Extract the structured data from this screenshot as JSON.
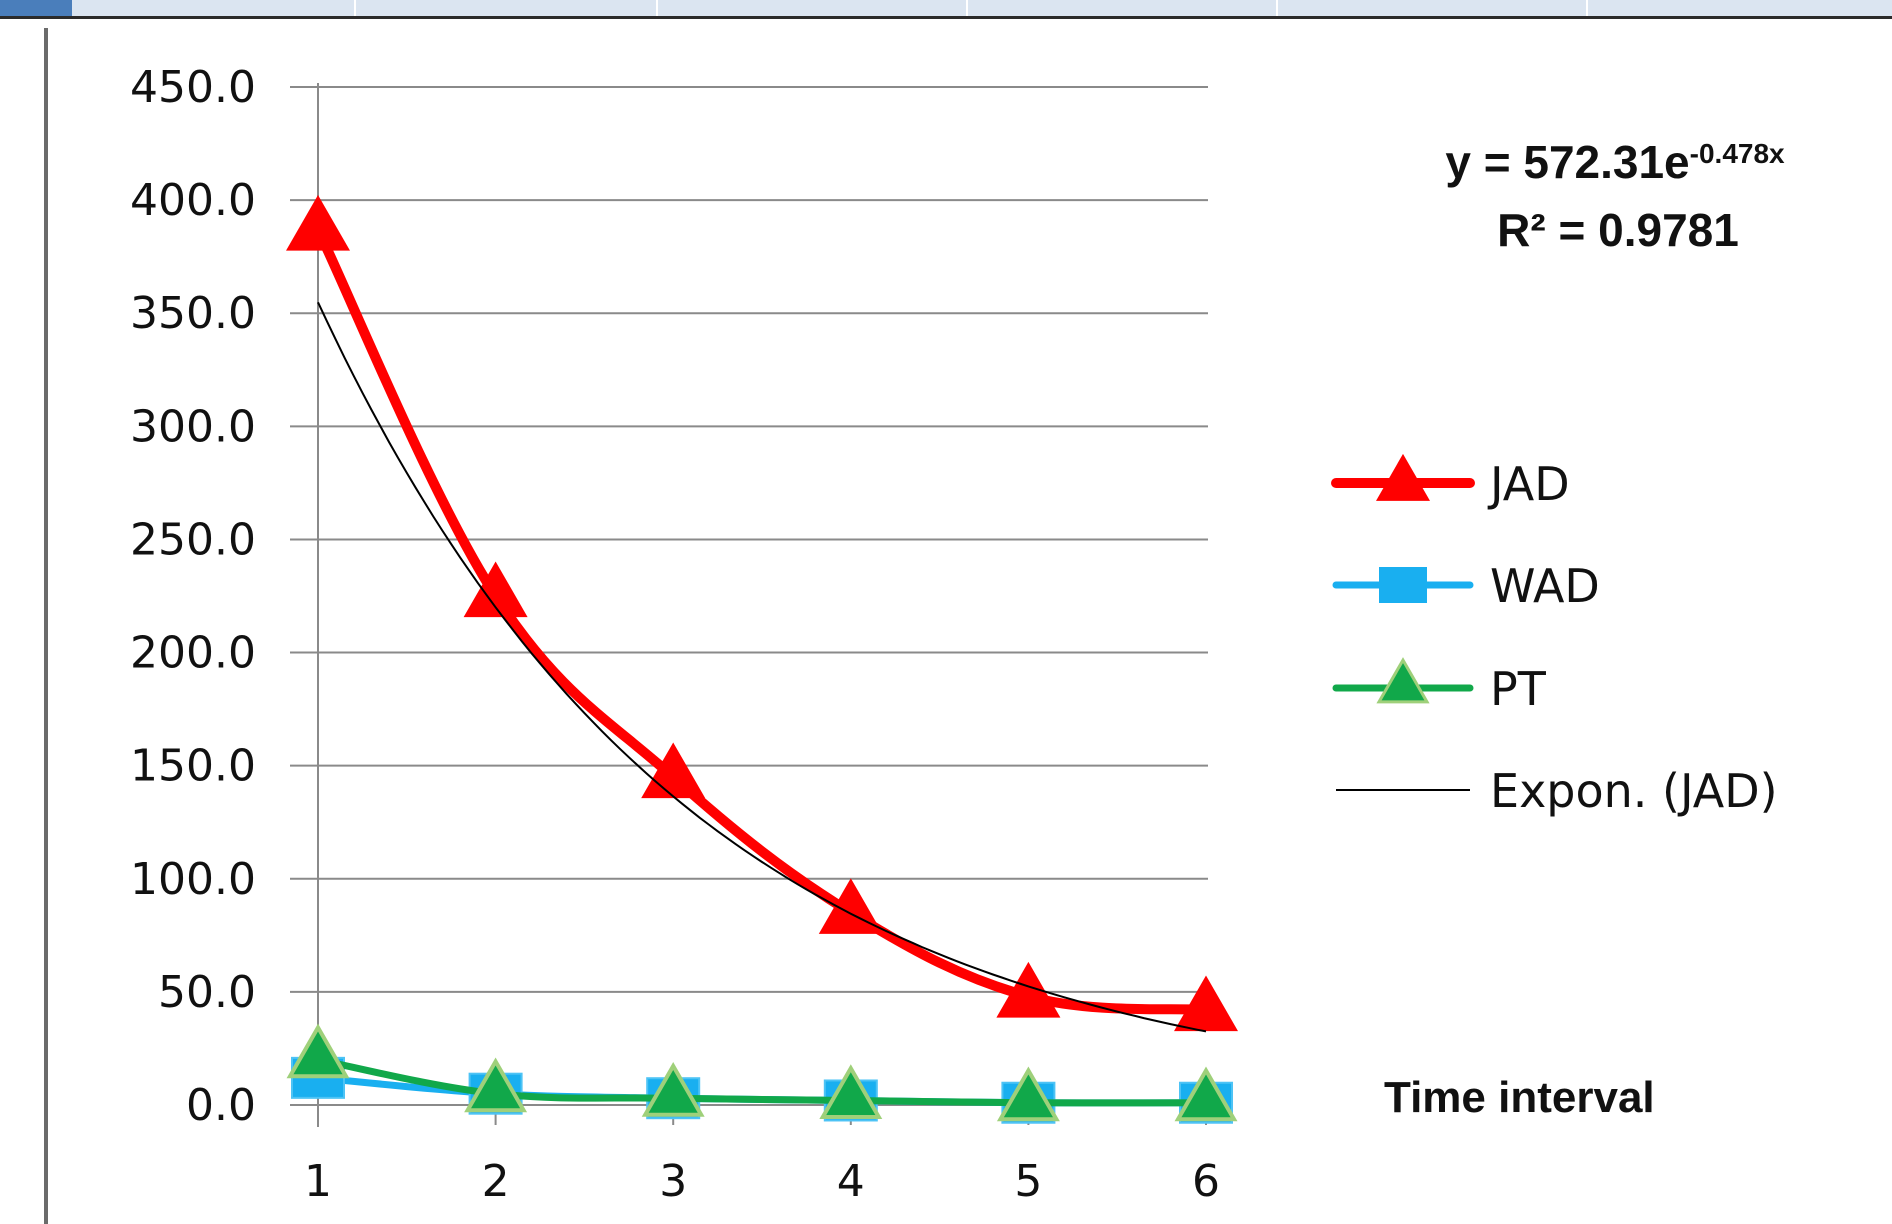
{
  "chart_data": {
    "type": "line",
    "title": "",
    "xlabel": "Time interval",
    "ylabel": "",
    "x": [
      1,
      2,
      3,
      4,
      5,
      6
    ],
    "ylim": [
      0,
      450
    ],
    "y_ticks": [
      "0.0",
      "50.0",
      "100.0",
      "150.0",
      "200.0",
      "250.0",
      "300.0",
      "350.0",
      "400.0",
      "450.0"
    ],
    "x_ticks": [
      "1",
      "2",
      "3",
      "4",
      "5",
      "6"
    ],
    "grid": "horizontal",
    "legend_position": "right",
    "series": [
      {
        "name": "JAD",
        "values": [
          387,
          225,
          145,
          85,
          48,
          42
        ],
        "color": "#ff0000",
        "marker": "triangle"
      },
      {
        "name": "WAD",
        "values": [
          12,
          5,
          3,
          2,
          1,
          1
        ],
        "color": "#19aff0",
        "marker": "square"
      },
      {
        "name": "PT",
        "values": [
          20,
          5,
          3,
          2,
          1,
          1
        ],
        "color": "#11a84a",
        "marker": "triangle"
      }
    ],
    "trendline": {
      "name": "Expon. (JAD)",
      "of_series": "JAD",
      "a": 572.31,
      "b": -0.478,
      "color": "#000000",
      "equation_base": "y = 572.31e",
      "equation_exponent": "-0.478x",
      "r2_text": "R² = 0.9781"
    }
  }
}
